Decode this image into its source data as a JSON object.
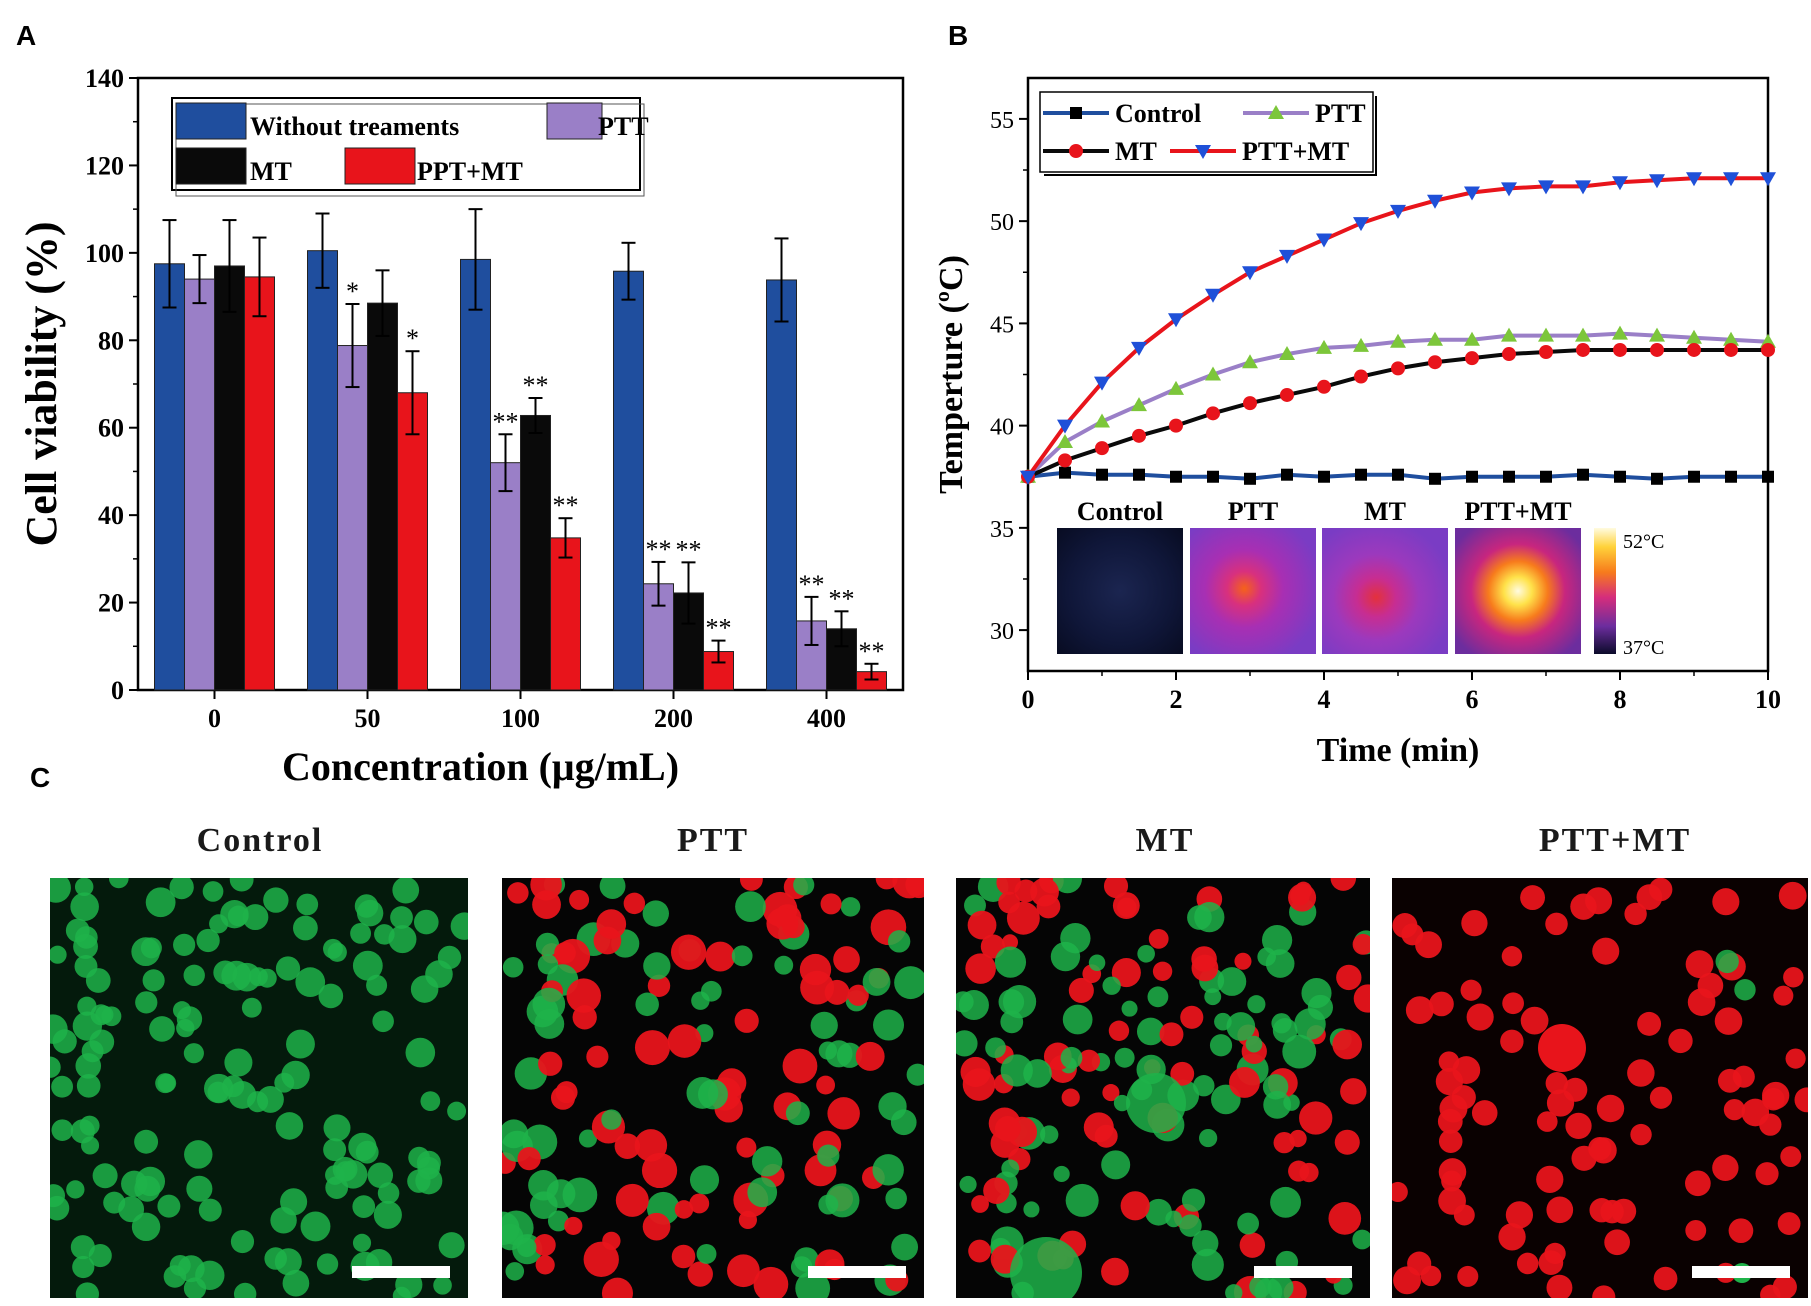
{
  "panels": {
    "a": "A",
    "b": "B",
    "c": "C"
  },
  "chart_data": [
    {
      "type": "bar",
      "panel": "A",
      "categories": [
        "0",
        "50",
        "100",
        "200",
        "400"
      ],
      "series": [
        {
          "name": "Without treaments",
          "values": [
            97.5,
            100.5,
            98.5,
            95.8,
            93.8
          ],
          "errors": [
            10,
            8.5,
            11.5,
            6.5,
            9.5
          ],
          "color": "#1f4e9e",
          "sig": [
            "",
            "",
            "",
            "",
            ""
          ]
        },
        {
          "name": "PTT",
          "values": [
            94,
            78.8,
            52,
            24.3,
            15.8
          ],
          "errors": [
            5.5,
            9.5,
            6.5,
            5,
            5.5
          ],
          "color": "#9a7fc7",
          "sig": [
            "",
            "*",
            "**",
            "**",
            "**"
          ]
        },
        {
          "name": "MT",
          "values": [
            97,
            88.5,
            62.8,
            22.2,
            14
          ],
          "errors": [
            10.5,
            7.5,
            4,
            7,
            4
          ],
          "color": "#0a0a0a",
          "sig": [
            "",
            "",
            "**",
            "**",
            "**"
          ]
        },
        {
          "name": "PPT+MT",
          "values": [
            94.5,
            68,
            34.8,
            8.8,
            4.2
          ],
          "errors": [
            9,
            9.5,
            4.5,
            2.5,
            1.8
          ],
          "color": "#e8141b",
          "sig": [
            "",
            "*",
            "**",
            "**",
            "**"
          ]
        }
      ],
      "xlabel": "Concentration (μg/mL)",
      "ylabel": "Cell viability (%)",
      "ylim": [
        0,
        140
      ],
      "yticks": [
        0,
        20,
        40,
        60,
        80,
        100,
        120,
        140
      ],
      "legend_position": "top"
    },
    {
      "type": "line",
      "panel": "B",
      "x": [
        0,
        0.5,
        1,
        1.5,
        2,
        2.5,
        3,
        3.5,
        4,
        4.5,
        5,
        5.5,
        6,
        6.5,
        7,
        7.5,
        8,
        8.5,
        9,
        9.5,
        10
      ],
      "series": [
        {
          "name": "Control",
          "marker": "square",
          "color": "#1f4e9e",
          "marker_color": "#000000",
          "values": [
            37.5,
            37.7,
            37.6,
            37.6,
            37.5,
            37.5,
            37.4,
            37.6,
            37.5,
            37.6,
            37.6,
            37.4,
            37.5,
            37.5,
            37.5,
            37.6,
            37.5,
            37.4,
            37.5,
            37.5,
            37.5
          ]
        },
        {
          "name": "PTT",
          "marker": "triangle-up",
          "color": "#9a7fc7",
          "marker_color": "#7cc63a",
          "values": [
            37.5,
            39.2,
            40.2,
            41,
            41.8,
            42.5,
            43.1,
            43.5,
            43.8,
            43.9,
            44.1,
            44.2,
            44.2,
            44.4,
            44.4,
            44.4,
            44.5,
            44.4,
            44.3,
            44.2,
            44.1
          ]
        },
        {
          "name": "MT",
          "marker": "circle",
          "color": "#0a0a0a",
          "marker_color": "#e8141b",
          "values": [
            37.5,
            38.3,
            38.9,
            39.5,
            40,
            40.6,
            41.1,
            41.5,
            41.9,
            42.4,
            42.8,
            43.1,
            43.3,
            43.5,
            43.6,
            43.7,
            43.7,
            43.7,
            43.7,
            43.7,
            43.7
          ]
        },
        {
          "name": "PTT+MT",
          "marker": "triangle-down",
          "color": "#e8141b",
          "marker_color": "#1f50d8",
          "values": [
            37.5,
            40,
            42.1,
            43.8,
            45.2,
            46.4,
            47.5,
            48.3,
            49.1,
            49.9,
            50.5,
            51,
            51.4,
            51.6,
            51.7,
            51.7,
            51.9,
            52,
            52.1,
            52.1,
            52.1
          ]
        }
      ],
      "xlabel": "Time (min)",
      "ylabel": "Temperture (ºC)",
      "xlim": [
        0,
        10
      ],
      "ylim": [
        28,
        57
      ],
      "xticks": [
        "0",
        "2",
        "4",
        "6",
        "8",
        "10"
      ],
      "yticks": [
        30,
        35,
        40,
        45,
        50,
        55
      ],
      "legend_position": "top-left",
      "inset": {
        "labels": [
          "Control",
          "PTT",
          "MT",
          "PTT+MT"
        ],
        "colorbar_max": "52°C",
        "colorbar_min": "37°C"
      }
    }
  ],
  "panel_c": {
    "titles": [
      "Control",
      "PTT",
      "MT",
      "PTT+MT"
    ]
  },
  "colors": {
    "live": "#1fb34a",
    "dead": "#e8141b",
    "background": "#000000"
  }
}
